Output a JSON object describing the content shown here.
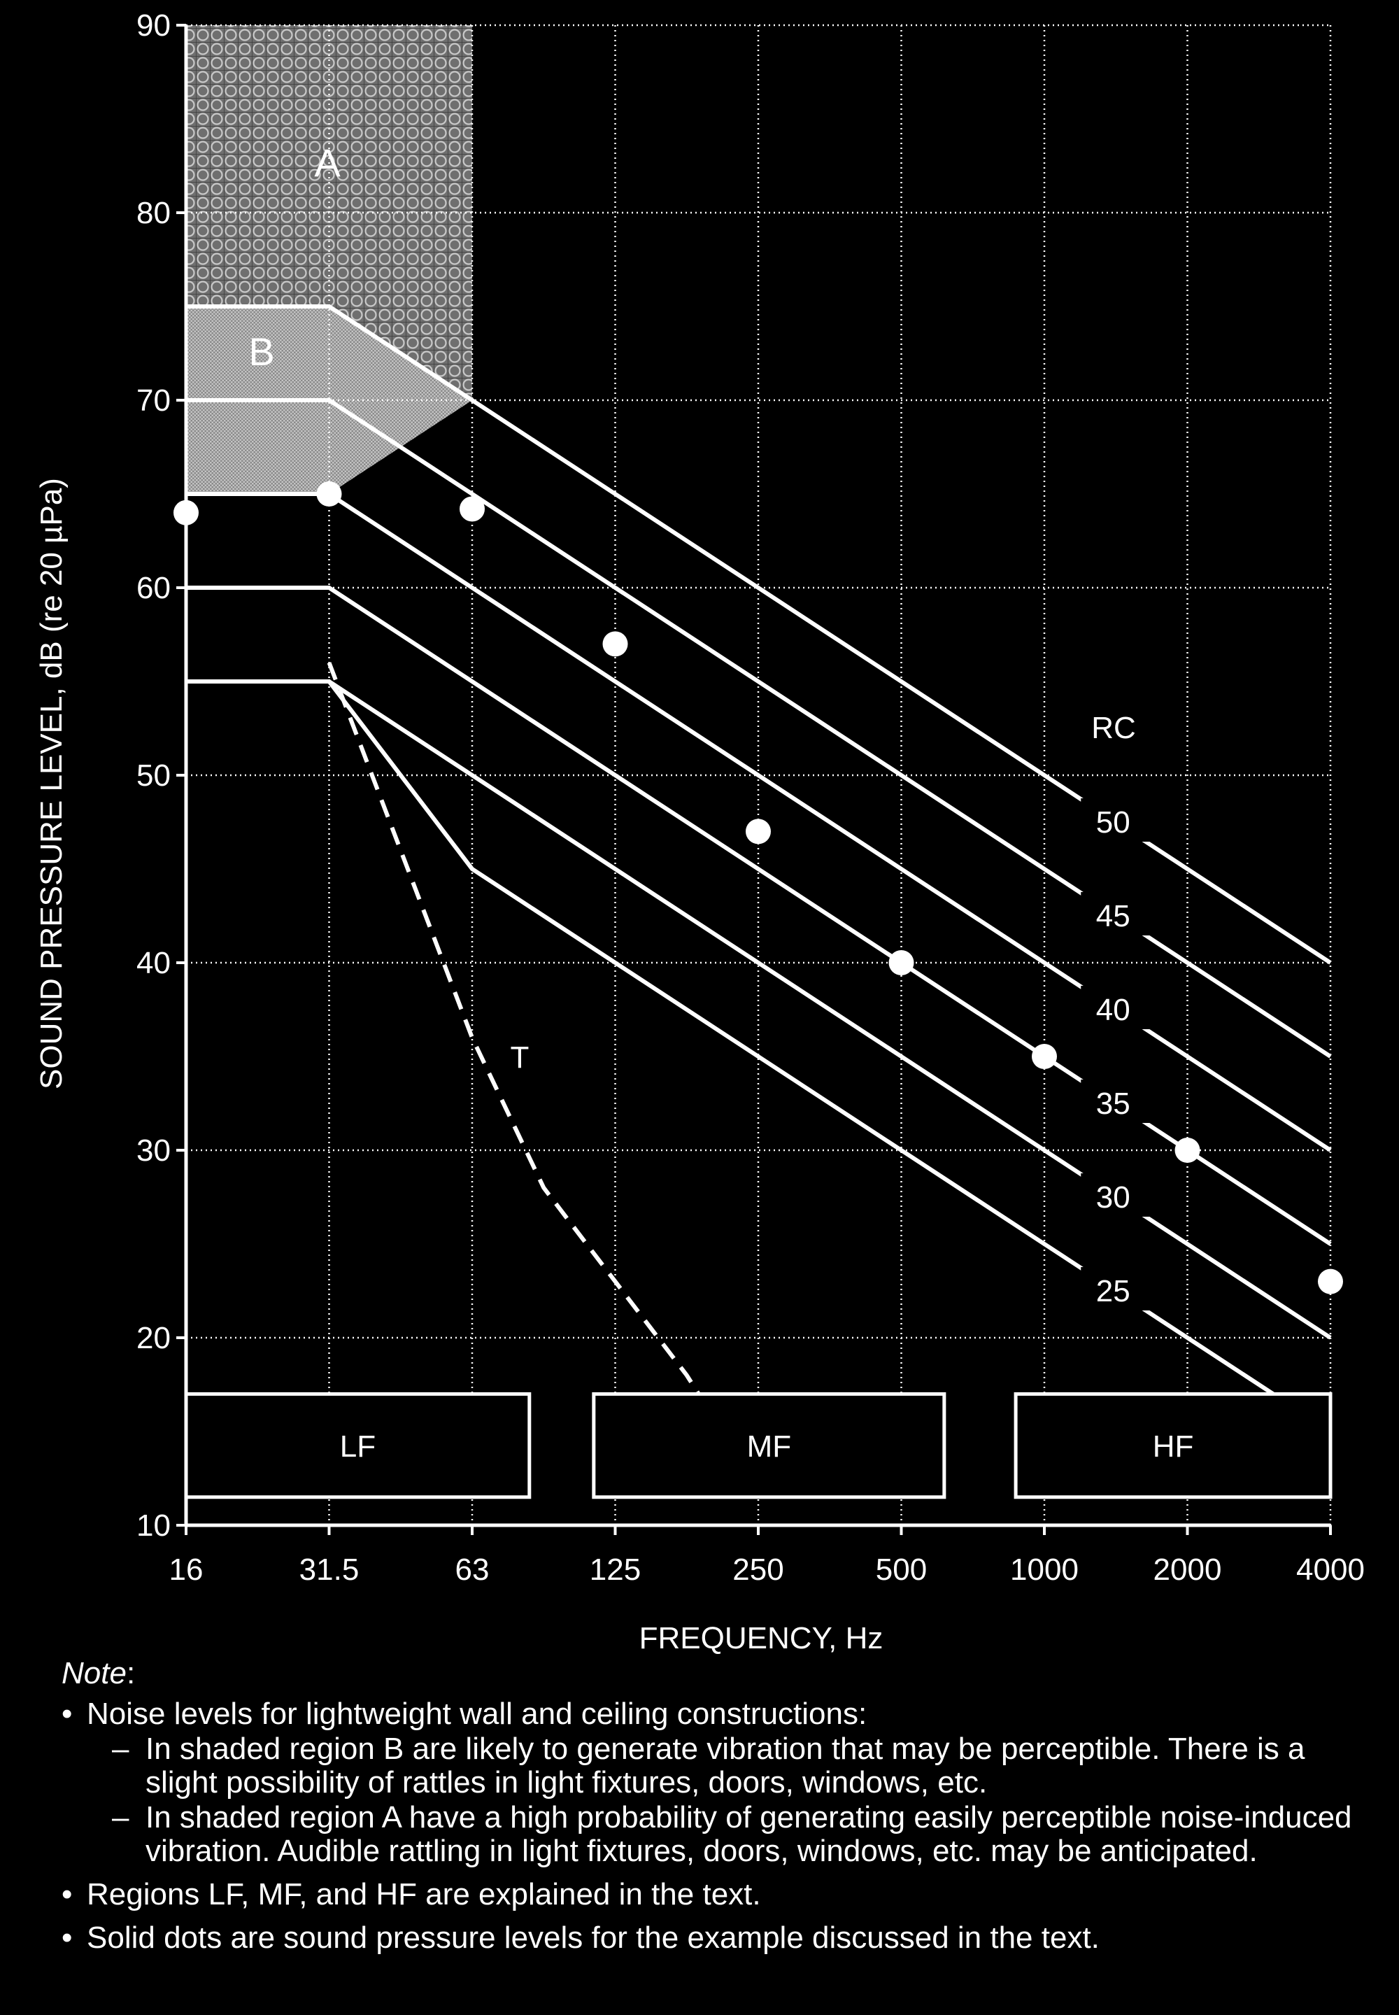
{
  "chart_data": {
    "type": "line",
    "xlabel": "FREQUENCY, Hz",
    "ylabel": "SOUND PRESSURE LEVEL, dB (re 20 µPa)",
    "x_categories": [
      "16",
      "31.5",
      "63",
      "125",
      "250",
      "500",
      "1000",
      "2000",
      "4000"
    ],
    "ylim": [
      10,
      90
    ],
    "y_ticks": [
      "10",
      "20",
      "30",
      "40",
      "50",
      "60",
      "70",
      "80",
      "90"
    ],
    "grid": true,
    "series_title": "RC",
    "series": [
      {
        "name": "50",
        "values": [
          75,
          75,
          70,
          65,
          60,
          55,
          50,
          45,
          40
        ]
      },
      {
        "name": "45",
        "values": [
          70,
          70,
          65,
          60,
          55,
          50,
          45,
          40,
          35
        ]
      },
      {
        "name": "40",
        "values": [
          65,
          65,
          60,
          55,
          50,
          45,
          40,
          35,
          30
        ]
      },
      {
        "name": "35",
        "values": [
          60,
          60,
          55,
          50,
          45,
          40,
          35,
          30,
          25
        ]
      },
      {
        "name": "30",
        "values": [
          55,
          55,
          50,
          45,
          40,
          35,
          30,
          25,
          20
        ]
      },
      {
        "name": "25",
        "values": [
          55,
          55,
          45,
          40,
          35,
          30,
          25,
          20,
          15
        ]
      }
    ],
    "threshold": {
      "label": "T",
      "points": [
        [
          1,
          56
        ],
        [
          1.5,
          46
        ],
        [
          2,
          36
        ],
        [
          2.5,
          28
        ],
        [
          3,
          23
        ],
        [
          3.5,
          18
        ],
        [
          4,
          12
        ]
      ]
    },
    "dots": [
      [
        0,
        64
      ],
      [
        1,
        65
      ],
      [
        2,
        64.2
      ],
      [
        3,
        57
      ],
      [
        4,
        47
      ],
      [
        5,
        40
      ],
      [
        6,
        35
      ],
      [
        7,
        30
      ],
      [
        8,
        23
      ]
    ],
    "regions": [
      {
        "label": "A",
        "polygon": [
          [
            0,
            90
          ],
          [
            2,
            90
          ],
          [
            2,
            70
          ],
          [
            1,
            75
          ],
          [
            0,
            75
          ]
        ]
      },
      {
        "label": "B",
        "polygon": [
          [
            0,
            75
          ],
          [
            1,
            75
          ],
          [
            2,
            70
          ],
          [
            1,
            65
          ],
          [
            0,
            65
          ]
        ]
      }
    ],
    "bands": [
      {
        "label": "LF",
        "x": [
          0,
          2.4
        ],
        "y": [
          11.5,
          17
        ]
      },
      {
        "label": "MF",
        "x": [
          2.85,
          5.3
        ],
        "y": [
          11.5,
          17
        ]
      },
      {
        "label": "HF",
        "x": [
          5.8,
          8
        ],
        "y": [
          11.5,
          17
        ]
      }
    ]
  },
  "note": {
    "title": "Note",
    "colon": ":",
    "items": [
      {
        "text": "Noise levels for lightweight wall and ceiling constructions:",
        "subitems": [
          "In shaded region B are likely to generate vibration that may be perceptible. There is a slight possibility of rattles in light fixtures, doors, windows, etc.",
          "In shaded region A have a high probability of generating easily perceptible noise-induced vibration. Audible rattling in light fixtures, doors, windows, etc. may be anticipated."
        ]
      },
      {
        "text": "Regions LF, MF, and HF are explained in the text.",
        "subitems": []
      },
      {
        "text": "Solid dots are sound pressure levels for the example discussed in the text.",
        "subitems": []
      }
    ]
  }
}
